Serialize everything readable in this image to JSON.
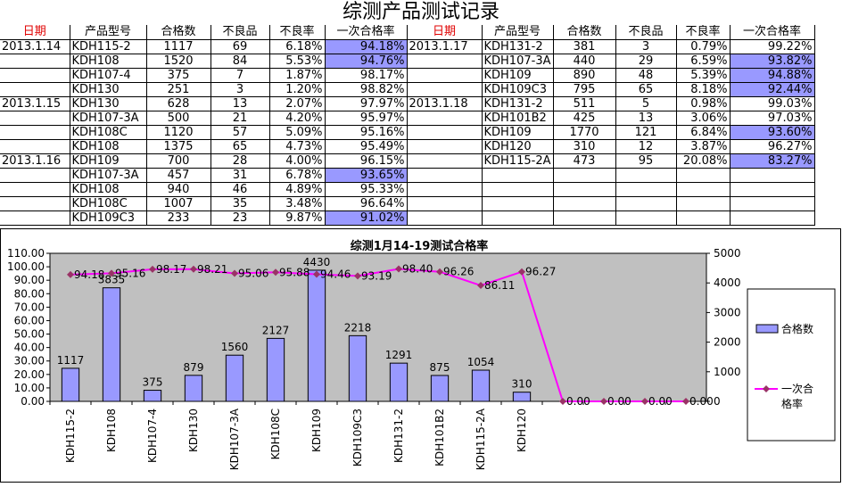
{
  "title": "综测产品测试记录",
  "headers": [
    "日期",
    "产品型号",
    "合格数",
    "不良品",
    "不良率",
    "一次合格率"
  ],
  "left_rows": [
    {
      "date": "2013.1.14",
      "model": "KDH115-2",
      "qty": "1117",
      "bad": "69",
      "rate": "6.18%",
      "pass": "94.18%",
      "hl": true
    },
    {
      "date": "",
      "model": "KDH108",
      "qty": "1520",
      "bad": "84",
      "rate": "5.53%",
      "pass": "94.76%",
      "hl": true
    },
    {
      "date": "",
      "model": "KDH107-4",
      "qty": "375",
      "bad": "7",
      "rate": "1.87%",
      "pass": "98.17%",
      "hl": false
    },
    {
      "date": "",
      "model": "KDH130",
      "qty": "251",
      "bad": "3",
      "rate": "1.20%",
      "pass": "98.82%",
      "hl": false
    },
    {
      "date": "2013.1.15",
      "model": "KDH130",
      "qty": "628",
      "bad": "13",
      "rate": "2.07%",
      "pass": "97.97%",
      "hl": false
    },
    {
      "date": "",
      "model": "KDH107-3A",
      "qty": "500",
      "bad": "21",
      "rate": "4.20%",
      "pass": "95.97%",
      "hl": false
    },
    {
      "date": "",
      "model": "KDH108C",
      "qty": "1120",
      "bad": "57",
      "rate": "5.09%",
      "pass": "95.16%",
      "hl": false
    },
    {
      "date": "",
      "model": "KDH108",
      "qty": "1375",
      "bad": "65",
      "rate": "4.73%",
      "pass": "95.49%",
      "hl": false
    },
    {
      "date": "2013.1.16",
      "model": "KDH109",
      "qty": "700",
      "bad": "28",
      "rate": "4.00%",
      "pass": "96.15%",
      "hl": false
    },
    {
      "date": "",
      "model": "KDH107-3A",
      "qty": "457",
      "bad": "31",
      "rate": "6.78%",
      "pass": "93.65%",
      "hl": true
    },
    {
      "date": "",
      "model": "KDH108",
      "qty": "940",
      "bad": "46",
      "rate": "4.89%",
      "pass": "95.33%",
      "hl": false
    },
    {
      "date": "",
      "model": "KDH108C",
      "qty": "1007",
      "bad": "35",
      "rate": "3.48%",
      "pass": "96.64%",
      "hl": false
    },
    {
      "date": "",
      "model": "KDH109C3",
      "qty": "233",
      "bad": "23",
      "rate": "9.87%",
      "pass": "91.02%",
      "hl": true
    }
  ],
  "right_rows": [
    {
      "date": "2013.1.17",
      "model": "KDH131-2",
      "qty": "381",
      "bad": "3",
      "rate": "0.79%",
      "pass": "99.22%",
      "hl": false
    },
    {
      "date": "",
      "model": "KDH107-3A",
      "qty": "440",
      "bad": "29",
      "rate": "6.59%",
      "pass": "93.82%",
      "hl": true
    },
    {
      "date": "",
      "model": "KDH109",
      "qty": "890",
      "bad": "48",
      "rate": "5.39%",
      "pass": "94.88%",
      "hl": true
    },
    {
      "date": "",
      "model": "KDH109C3",
      "qty": "795",
      "bad": "65",
      "rate": "8.18%",
      "pass": "92.44%",
      "hl": true
    },
    {
      "date": "2013.1.18",
      "model": "KDH131-2",
      "qty": "511",
      "bad": "5",
      "rate": "0.98%",
      "pass": "99.03%",
      "hl": false
    },
    {
      "date": "",
      "model": "KDH101B2",
      "qty": "425",
      "bad": "13",
      "rate": "3.06%",
      "pass": "97.03%",
      "hl": false
    },
    {
      "date": "",
      "model": "KDH109",
      "qty": "1770",
      "bad": "121",
      "rate": "6.84%",
      "pass": "93.60%",
      "hl": true
    },
    {
      "date": "",
      "model": "KDH120",
      "qty": "310",
      "bad": "12",
      "rate": "3.87%",
      "pass": "96.27%",
      "hl": false
    },
    {
      "date": "",
      "model": "KDH115-2A",
      "qty": "473",
      "bad": "95",
      "rate": "20.08%",
      "pass": "83.27%",
      "hl": true
    },
    {
      "date": "",
      "model": "",
      "qty": "",
      "bad": "",
      "rate": "",
      "pass": "",
      "hl": false
    },
    {
      "date": "",
      "model": "",
      "qty": "",
      "bad": "",
      "rate": "",
      "pass": "",
      "hl": false
    },
    {
      "date": "",
      "model": "",
      "qty": "",
      "bad": "",
      "rate": "",
      "pass": "",
      "hl": false
    },
    {
      "date": "",
      "model": "",
      "qty": "",
      "bad": "",
      "rate": "",
      "pass": "",
      "hl": false
    }
  ],
  "colors": {
    "header_red": "#e00000",
    "highlight": "#9999ff",
    "bar": "#9999ff",
    "line": "#ff00ff",
    "line_marker": "#993366",
    "plot_bg": "#c0c0c0"
  },
  "chart_data": {
    "type": "bar",
    "title": "综测1月14-19测试合格率",
    "categories": [
      "KDH115-2",
      "KDH108",
      "KDH107-4",
      "KDH130",
      "KDH107-3A",
      "KDH108C",
      "KDH109",
      "KDH109C3",
      "KDH131-2",
      "KDH101B2",
      "KDH115-2A",
      "KDH120",
      "",
      "",
      "",
      ""
    ],
    "series": [
      {
        "name": "合格数",
        "axis": "right",
        "type": "bar",
        "values": [
          1117,
          3835,
          375,
          879,
          1560,
          2127,
          4430,
          2218,
          1291,
          875,
          1054,
          310,
          null,
          null,
          null,
          null
        ],
        "labels": [
          "1117",
          "3835",
          "375",
          "879",
          "1560",
          "2127",
          "4430",
          "2218",
          "1291",
          "875",
          "1054",
          "310",
          "",
          "",
          "",
          ""
        ]
      },
      {
        "name": "一次合格率",
        "axis": "left",
        "type": "line",
        "values": [
          94.18,
          95.16,
          98.17,
          98.21,
          95.06,
          95.88,
          94.46,
          93.19,
          98.4,
          96.26,
          86.11,
          96.27,
          0,
          0,
          0,
          0
        ],
        "labels": [
          "94.18",
          "95.16",
          "98.17",
          "98.21",
          "95.06",
          "95.88",
          "94.46",
          "93.19",
          "98.40",
          "96.26",
          "86.11",
          "96.27",
          "0.00",
          "0.00",
          "0.00",
          "0.00"
        ]
      }
    ],
    "y_left": {
      "min": 0,
      "max": 110,
      "step": 10,
      "ticks": [
        "0.00",
        "10.00",
        "20.00",
        "30.00",
        "40.00",
        "50.00",
        "60.00",
        "70.00",
        "80.00",
        "90.00",
        "100.00",
        "110.00"
      ]
    },
    "y_right": {
      "min": 0,
      "max": 5000,
      "step": 1000,
      "ticks": [
        "0",
        "1000",
        "2000",
        "3000",
        "4000",
        "5000"
      ]
    },
    "legend": [
      {
        "label": "合格数",
        "kind": "bar"
      },
      {
        "label": "一次合\n格率",
        "kind": "line"
      }
    ],
    "legend_position": "right",
    "grid": false
  }
}
